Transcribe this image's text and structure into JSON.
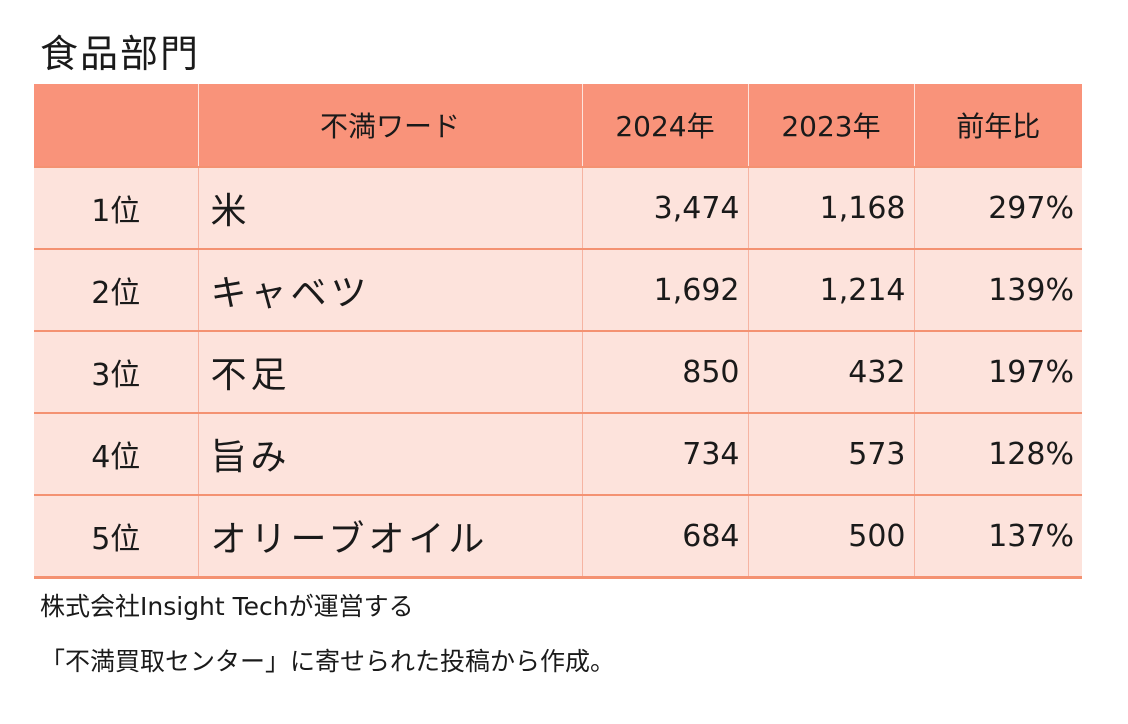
{
  "title": "食品部門",
  "table": {
    "headers": [
      "",
      "不満ワード",
      "2024年",
      "2023年",
      "前年比"
    ],
    "rows": [
      {
        "rank": "1位",
        "word": "米",
        "y2024": "3,474",
        "y2023": "1,168",
        "ratio": "297%"
      },
      {
        "rank": "2位",
        "word": "キャベツ",
        "y2024": "1,692",
        "y2023": "1,214",
        "ratio": "139%"
      },
      {
        "rank": "3位",
        "word": "不足",
        "y2024": "850",
        "y2023": "432",
        "ratio": "197%"
      },
      {
        "rank": "4位",
        "word": "旨み",
        "y2024": "734",
        "y2023": "573",
        "ratio": "128%"
      },
      {
        "rank": "5位",
        "word": "オリーブオイル",
        "y2024": "684",
        "y2023": "500",
        "ratio": "137%"
      }
    ]
  },
  "notes": {
    "line1": "株式会社Insight Techが運営する",
    "line2": "「不満買取センター」に寄せられた投稿から作成。"
  },
  "colors": {
    "header_bg": "#f9937a",
    "row_bg": "#fde3dc",
    "row_border": "#f49272"
  }
}
